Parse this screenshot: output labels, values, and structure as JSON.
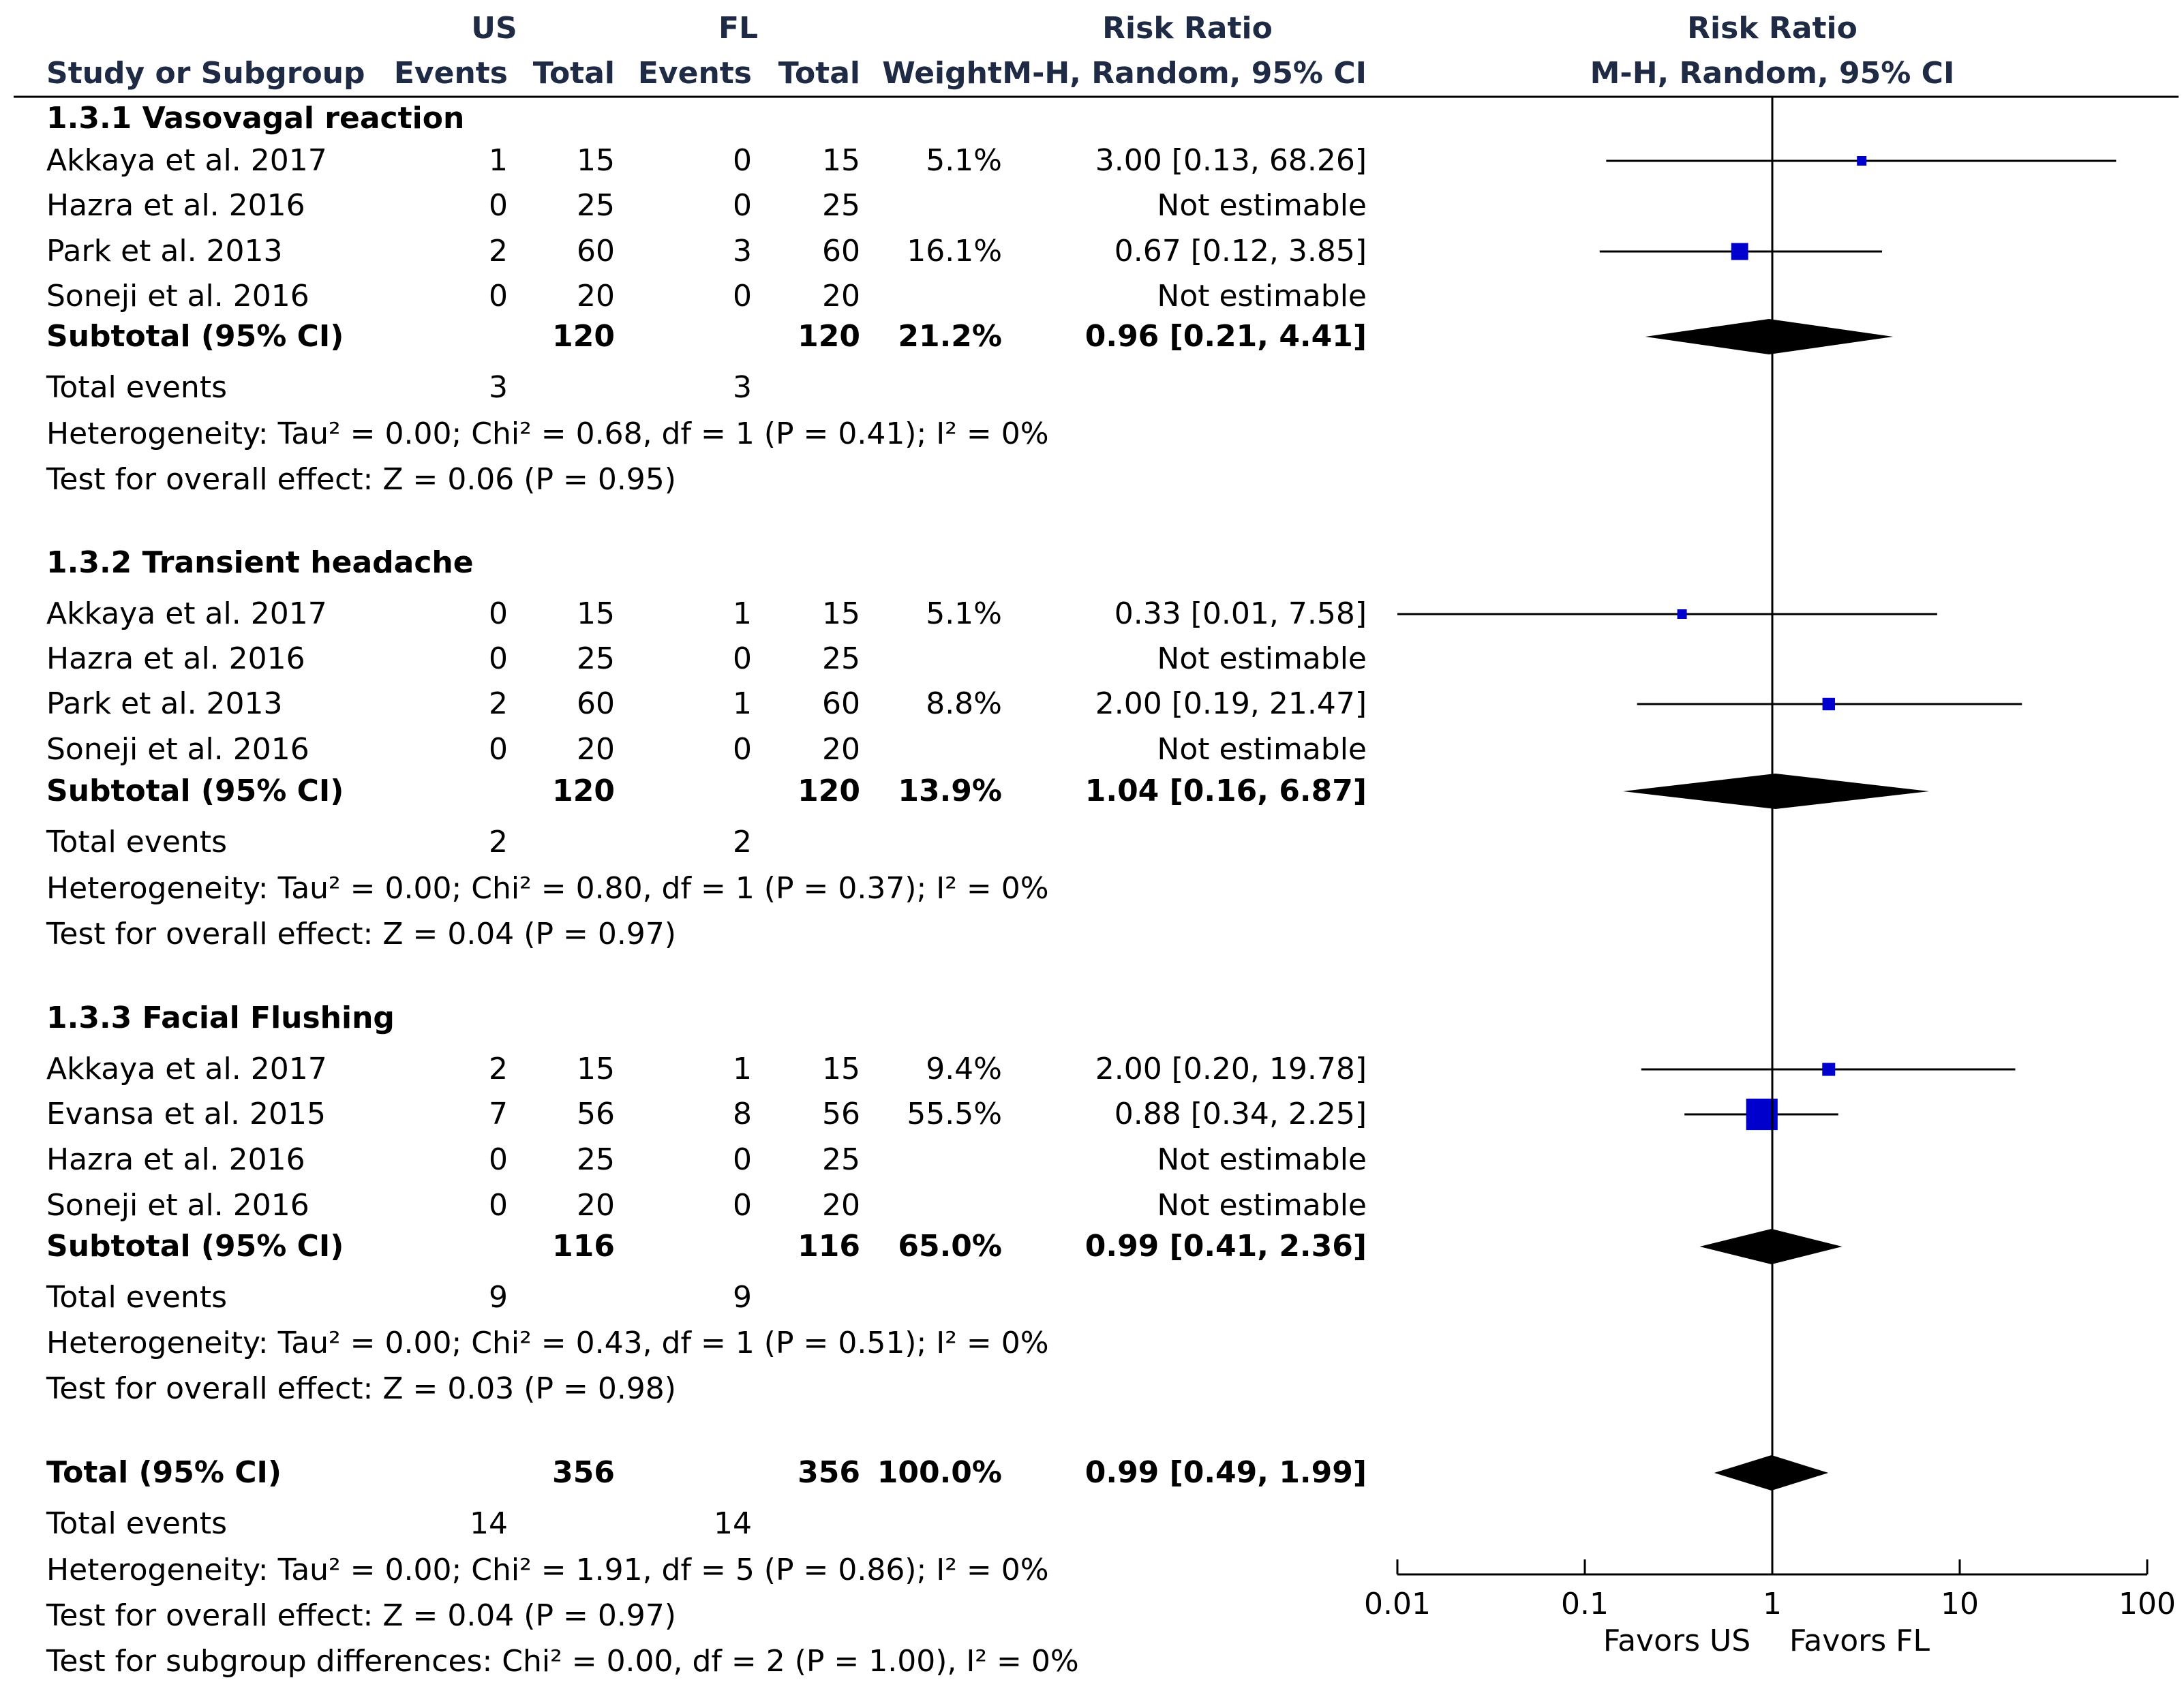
{
  "header": {
    "group1": "US",
    "group2": "FL",
    "col_study": "Study or Subgroup",
    "col_events": "Events",
    "col_total": "Total",
    "col_weight": "Weight",
    "col_rr_title": "Risk Ratio",
    "col_rr_method": "M-H, Random, 95% CI",
    "plot_title": "Risk Ratio",
    "plot_method": "M-H, Random, 95% CI"
  },
  "chart_data": {
    "type": "forest",
    "scale": "log",
    "xlim": [
      0.01,
      100
    ],
    "ticks": [
      "0.01",
      "0.1",
      "1",
      "10",
      "100"
    ],
    "tick_values": [
      0.01,
      0.1,
      1,
      10,
      100
    ],
    "null_value": 1,
    "favors_left": "Favors US",
    "favors_right": "Favors FL",
    "subgroups": [
      {
        "title": "1.3.1 Vasovagal reaction",
        "studies": [
          {
            "name": "Akkaya et al. 2017",
            "e1": "1",
            "t1": "15",
            "e2": "0",
            "t2": "15",
            "weight": "5.1%",
            "ci_text": "3.00 [0.13, 68.26]",
            "rr": 3.0,
            "lo": 0.13,
            "hi": 68.26,
            "w": 5.1
          },
          {
            "name": "Hazra et al. 2016",
            "e1": "0",
            "t1": "25",
            "e2": "0",
            "t2": "25",
            "weight": "",
            "ci_text": "Not estimable",
            "rr": null,
            "lo": null,
            "hi": null,
            "w": 0
          },
          {
            "name": "Park et al. 2013",
            "e1": "2",
            "t1": "60",
            "e2": "3",
            "t2": "60",
            "weight": "16.1%",
            "ci_text": "0.67 [0.12, 3.85]",
            "rr": 0.67,
            "lo": 0.12,
            "hi": 3.85,
            "w": 16.1
          },
          {
            "name": "Soneji et al. 2016",
            "e1": "0",
            "t1": "20",
            "e2": "0",
            "t2": "20",
            "weight": "",
            "ci_text": "Not estimable",
            "rr": null,
            "lo": null,
            "hi": null,
            "w": 0
          }
        ],
        "subtotal": {
          "label": "Subtotal (95% CI)",
          "t1": "120",
          "t2": "120",
          "weight": "21.2%",
          "ci_text": "0.96 [0.21, 4.41]",
          "rr": 0.96,
          "lo": 0.21,
          "hi": 4.41
        },
        "total_events": {
          "label": "Total events",
          "e1": "3",
          "e2": "3"
        },
        "heterogeneity": "Heterogeneity: Tau² = 0.00; Chi² = 0.68, df = 1 (P = 0.41); I² = 0%",
        "overall": "Test for overall effect: Z = 0.06 (P = 0.95)"
      },
      {
        "title": "1.3.2 Transient headache",
        "studies": [
          {
            "name": "Akkaya et al. 2017",
            "e1": "0",
            "t1": "15",
            "e2": "1",
            "t2": "15",
            "weight": "5.1%",
            "ci_text": "0.33 [0.01, 7.58]",
            "rr": 0.33,
            "lo": 0.01,
            "hi": 7.58,
            "w": 5.1
          },
          {
            "name": "Hazra et al. 2016",
            "e1": "0",
            "t1": "25",
            "e2": "0",
            "t2": "25",
            "weight": "",
            "ci_text": "Not estimable",
            "rr": null,
            "lo": null,
            "hi": null,
            "w": 0
          },
          {
            "name": "Park et al. 2013",
            "e1": "2",
            "t1": "60",
            "e2": "1",
            "t2": "60",
            "weight": "8.8%",
            "ci_text": "2.00 [0.19, 21.47]",
            "rr": 2.0,
            "lo": 0.19,
            "hi": 21.47,
            "w": 8.8
          },
          {
            "name": "Soneji et al. 2016",
            "e1": "0",
            "t1": "20",
            "e2": "0",
            "t2": "20",
            "weight": "",
            "ci_text": "Not estimable",
            "rr": null,
            "lo": null,
            "hi": null,
            "w": 0
          }
        ],
        "subtotal": {
          "label": "Subtotal (95% CI)",
          "t1": "120",
          "t2": "120",
          "weight": "13.9%",
          "ci_text": "1.04 [0.16, 6.87]",
          "rr": 1.04,
          "lo": 0.16,
          "hi": 6.87
        },
        "total_events": {
          "label": "Total events",
          "e1": "2",
          "e2": "2"
        },
        "heterogeneity": "Heterogeneity: Tau² = 0.00; Chi² = 0.80, df = 1 (P = 0.37); I² = 0%",
        "overall": "Test for overall effect: Z = 0.04 (P = 0.97)"
      },
      {
        "title": "1.3.3 Facial Flushing",
        "studies": [
          {
            "name": "Akkaya et al. 2017",
            "e1": "2",
            "t1": "15",
            "e2": "1",
            "t2": "15",
            "weight": "9.4%",
            "ci_text": "2.00 [0.20, 19.78]",
            "rr": 2.0,
            "lo": 0.2,
            "hi": 19.78,
            "w": 9.4
          },
          {
            "name": "Evansa et al. 2015",
            "e1": "7",
            "t1": "56",
            "e2": "8",
            "t2": "56",
            "weight": "55.5%",
            "ci_text": "0.88 [0.34, 2.25]",
            "rr": 0.88,
            "lo": 0.34,
            "hi": 2.25,
            "w": 55.5
          },
          {
            "name": "Hazra et al. 2016",
            "e1": "0",
            "t1": "25",
            "e2": "0",
            "t2": "25",
            "weight": "",
            "ci_text": "Not estimable",
            "rr": null,
            "lo": null,
            "hi": null,
            "w": 0
          },
          {
            "name": "Soneji et al. 2016",
            "e1": "0",
            "t1": "20",
            "e2": "0",
            "t2": "20",
            "weight": "",
            "ci_text": "Not estimable",
            "rr": null,
            "lo": null,
            "hi": null,
            "w": 0
          }
        ],
        "subtotal": {
          "label": "Subtotal (95% CI)",
          "t1": "116",
          "t2": "116",
          "weight": "65.0%",
          "ci_text": "0.99 [0.41, 2.36]",
          "rr": 0.99,
          "lo": 0.41,
          "hi": 2.36
        },
        "total_events": {
          "label": "Total events",
          "e1": "9",
          "e2": "9"
        },
        "heterogeneity": "Heterogeneity: Tau² = 0.00; Chi² = 0.43, df = 1 (P = 0.51); I² = 0%",
        "overall": "Test for overall effect: Z = 0.03 (P = 0.98)"
      }
    ],
    "total": {
      "label": "Total (95% CI)",
      "t1": "356",
      "t2": "356",
      "weight": "100.0%",
      "ci_text": "0.99 [0.49, 1.99]",
      "rr": 0.99,
      "lo": 0.49,
      "hi": 1.99,
      "total_events": {
        "label": "Total events",
        "e1": "14",
        "e2": "14"
      },
      "heterogeneity": "Heterogeneity: Tau² = 0.00; Chi² = 1.91, df = 5 (P = 0.86); I² = 0%",
      "overall": "Test for overall effect: Z = 0.04 (P = 0.97)",
      "subgroup_diff": "Test for subgroup differences: Chi² = 0.00, df = 2 (P = 1.00), I² = 0%"
    },
    "colors": {
      "square": "#0000cc",
      "diamond": "#000000",
      "header_text": "#1f2a44"
    }
  }
}
